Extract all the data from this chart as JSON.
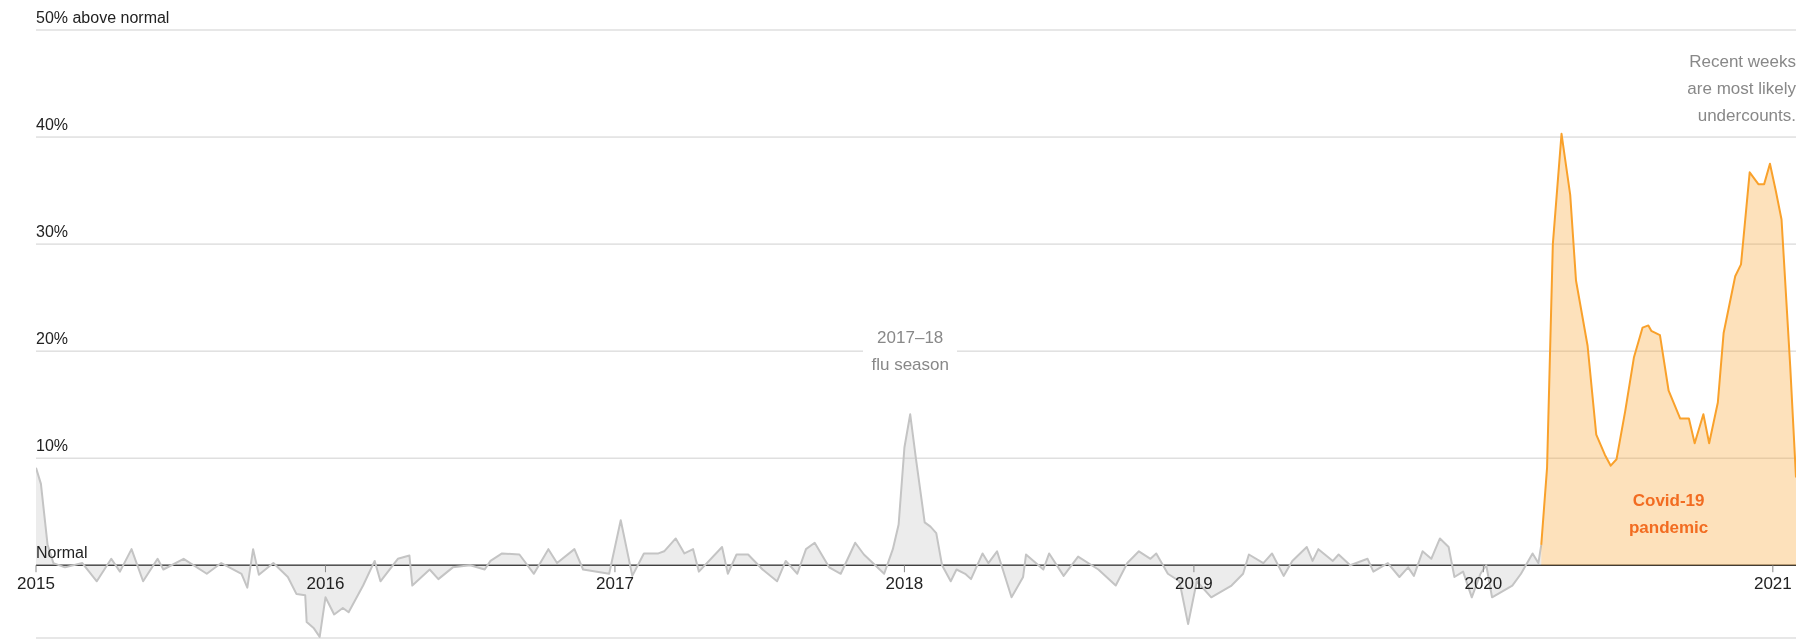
{
  "chart_data": {
    "type": "area",
    "xlim": [
      2015,
      2021.08
    ],
    "xticks": [
      2015,
      2016,
      2017,
      2018,
      2019,
      2020,
      2021
    ],
    "ylim": [
      -6.8,
      50
    ],
    "yticks": [
      {
        "value": 0,
        "label": "Normal"
      },
      {
        "value": 10,
        "label": "10%"
      },
      {
        "value": 20,
        "label": "20%"
      },
      {
        "value": 30,
        "label": "30%"
      },
      {
        "value": 40,
        "label": "40%"
      },
      {
        "value": 50,
        "label": "50% above normal"
      }
    ],
    "grid": "y",
    "series": [
      {
        "color": "#c4c4c4",
        "x": [
          2015.0,
          2015.017,
          2015.04,
          2015.06,
          2015.1,
          2015.16,
          2015.21,
          2015.26,
          2015.29,
          2015.33,
          2015.37,
          2015.42,
          2015.44,
          2015.51,
          2015.59,
          2015.64,
          2015.71,
          2015.73,
          2015.75,
          2015.77,
          2015.82,
          2015.87,
          2015.9,
          2015.93,
          2015.935,
          2015.96,
          2015.98,
          2016.0,
          2016.03,
          2016.06,
          2016.08,
          2016.13,
          2016.17,
          2016.19,
          2016.25,
          2016.29,
          2016.3,
          2016.36,
          2016.39,
          2016.44,
          2016.5,
          2016.55,
          2016.57,
          2016.61,
          2016.67,
          2016.72,
          2016.77,
          2016.8,
          2016.86,
          2016.89,
          2016.98,
          2017.02,
          2017.06,
          2017.1,
          2017.15,
          2017.17,
          2017.21,
          2017.24,
          2017.27,
          2017.29,
          2017.37,
          2017.39,
          2017.42,
          2017.46,
          2017.51,
          2017.56,
          2017.59,
          2017.63,
          2017.66,
          2017.69,
          2017.74,
          2017.78,
          2017.83,
          2017.86,
          2017.93,
          2017.96,
          2017.98,
          2018.0,
          2018.02,
          2018.04,
          2018.07,
          2018.09,
          2018.11,
          2018.13,
          2018.16,
          2018.18,
          2018.21,
          2018.23,
          2018.27,
          2018.29,
          2018.32,
          2018.37,
          2018.41,
          2018.42,
          2018.48,
          2018.5,
          2018.55,
          2018.6,
          2018.67,
          2018.73,
          2018.77,
          2018.81,
          2018.85,
          2018.87,
          2018.91,
          2018.95,
          2018.98,
          2019.01,
          2019.06,
          2019.13,
          2019.17,
          2019.19,
          2019.24,
          2019.27,
          2019.31,
          2019.34,
          2019.39,
          2019.41,
          2019.43,
          2019.48,
          2019.5,
          2019.54,
          2019.6,
          2019.62,
          2019.67,
          2019.71,
          2019.74,
          2019.76,
          2019.79,
          2019.82,
          2019.85,
          2019.88,
          2019.9,
          2019.93,
          2019.96,
          2019.99,
          2020.01,
          2020.03,
          2020.1,
          2020.13,
          2020.17,
          2020.19,
          2020.2
        ],
        "values": [
          9.1,
          7.6,
          1.9,
          0.2,
          -0.2,
          0.2,
          -1.5,
          0.6,
          -0.6,
          1.5,
          -1.5,
          0.6,
          -0.4,
          0.6,
          -0.8,
          0.2,
          -0.8,
          -2.1,
          1.5,
          -0.9,
          0.2,
          -1.1,
          -2.7,
          -2.8,
          -5.3,
          -5.9,
          -6.7,
          -3.0,
          -4.6,
          -4.0,
          -4.4,
          -1.9,
          0.4,
          -1.5,
          0.6,
          0.9,
          -1.9,
          -0.4,
          -1.3,
          -0.2,
          0,
          -0.4,
          0.4,
          1.1,
          1.0,
          -0.8,
          1.5,
          0.2,
          1.5,
          -0.4,
          -0.8,
          4.2,
          -1.0,
          1.1,
          1.1,
          1.3,
          2.5,
          1.1,
          1.5,
          -0.6,
          1.7,
          -0.8,
          1.0,
          1.0,
          -0.4,
          -1.5,
          0.4,
          -0.8,
          1.5,
          2.1,
          -0.2,
          -0.8,
          2.1,
          1.0,
          -0.8,
          1.5,
          3.8,
          11.0,
          14.1,
          9.9,
          4.0,
          3.6,
          3.0,
          0,
          -1.5,
          -0.4,
          -0.8,
          -1.3,
          1.1,
          0.2,
          1.3,
          -3.0,
          -1.1,
          1.0,
          -0.4,
          1.1,
          -1.0,
          0.8,
          -0.4,
          -1.9,
          0.2,
          1.3,
          0.6,
          1.1,
          -0.8,
          -1.5,
          -5.5,
          -1.5,
          -3.0,
          -1.9,
          -0.8,
          1.0,
          0.2,
          1.1,
          -1.0,
          0.4,
          1.7,
          0.4,
          1.5,
          0.4,
          1.0,
          0,
          0.6,
          -0.6,
          0.2,
          -1.1,
          -0.2,
          -1.0,
          1.3,
          0.6,
          2.5,
          1.7,
          -1.1,
          -0.6,
          -3.0,
          -0.8,
          0,
          -3.0,
          -1.9,
          -0.8,
          1.1,
          0.2,
          1.9
        ]
      },
      {
        "name": "Covid-19 pandemic",
        "color": "#f9a12b",
        "x": [
          2020.2,
          2020.22,
          2020.24,
          2020.27,
          2020.3,
          2020.32,
          2020.36,
          2020.39,
          2020.42,
          2020.44,
          2020.46,
          2020.49,
          2020.52,
          2020.55,
          2020.57,
          2020.58,
          2020.61,
          2020.64,
          2020.68,
          2020.71,
          2020.73,
          2020.76,
          2020.78,
          2020.81,
          2020.83,
          2020.87,
          2020.89,
          2020.92,
          2020.95,
          2020.97,
          2020.99,
          2021.01,
          2021.03,
          2021.06,
          2021.08
        ],
        "values": [
          1.9,
          9.1,
          30.0,
          40.3,
          34.6,
          26.6,
          20.5,
          12.2,
          10.3,
          9.3,
          9.9,
          14.4,
          19.4,
          22.2,
          22.4,
          21.9,
          21.5,
          16.3,
          13.7,
          13.7,
          11.4,
          14.1,
          11.4,
          15.2,
          21.7,
          27.0,
          28.1,
          36.7,
          35.6,
          35.6,
          37.5,
          35.0,
          32.3,
          18.6,
          8.2
        ]
      }
    ],
    "annotations": [
      {
        "text": "2017–18\nflu season",
        "x": 2018.02,
        "y": 14.1
      },
      "Recent weeks\nare most likely\nundercounts."
    ]
  }
}
